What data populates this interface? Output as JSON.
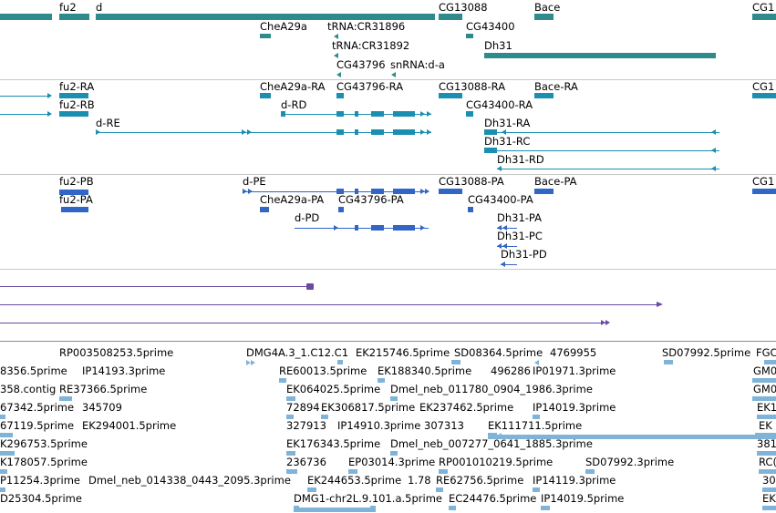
{
  "gene_track": {
    "labels": [
      "fu2",
      "d",
      "CG13088",
      "Bace",
      "CG1",
      "CheA29a",
      "tRNA:CR31896",
      "CG43400",
      "tRNA:CR31892",
      "Dh31",
      "CG43796",
      "snRNA:d-a"
    ]
  },
  "flybase_track": {
    "labels": [
      "fu2-RA",
      "CheA29a-RA",
      "CG43796-RA",
      "CG13088-RA",
      "Bace-RA",
      "CG1",
      "fu2-RB",
      "d-RD",
      "CG43400-RA",
      "d-RE",
      "Dh31-RA",
      "Dh31-RC",
      "Dh31-RD"
    ]
  },
  "protein_track": {
    "labels": [
      "fu2-PB",
      "d-PE",
      "CG13088-PA",
      "Bace-PA",
      "CG1",
      "fu2-PA",
      "CheA29a-PA",
      "CG43796-PA",
      "CG43400-PA",
      "d-PD",
      "Dh31-PA",
      "Dh31-PC",
      "Dh31-PD"
    ]
  },
  "est_track": {
    "rows": [
      [
        "RP003508253.5prime",
        "DMG4A.3_1.C12.C1",
        "EK215746.5prime",
        "SD08364.5prime",
        "4769955",
        "SD07992.5prime",
        "FGC"
      ],
      [
        "8356.5prime",
        "IP14193.3prime",
        "RE60013.5prime",
        "EK188340.5prime",
        "496286",
        "IP01971.3prime",
        "GM0"
      ],
      [
        "358.contig",
        "RE37366.5prime",
        "EK064025.5prime",
        "Dmel_neb_011780_0904_1986.3prime",
        "GM0"
      ],
      [
        "67342.5prime",
        "345709",
        "72894",
        "EK306817.5prime",
        "EK237462.5prime",
        "IP14019.3prime",
        "EK1"
      ],
      [
        "67119.5prime",
        "EK294001.5prime",
        "327913",
        "IP14910.3prime",
        "307313",
        "EK111711.5prime",
        "EK"
      ],
      [
        "K296753.5prime",
        "EK176343.5prime",
        "Dmel_neb_007277_0641_1885.3prime",
        "381"
      ],
      [
        "K178057.5prime",
        "236736",
        "EP03014.3prime",
        "RP001010219.5prime",
        "SD07992.3prime",
        "RC("
      ],
      [
        "P11254.3prime",
        "Dmel_neb_014338_0443_2095.3prime",
        "EK244653.5prime",
        "1.78",
        "RE62756.5prime",
        "IP14119.3prime",
        "30"
      ],
      [
        "D25304.5prime",
        "DMG1-chr2L.9.101.a.5prime",
        "EC24476.5prime",
        "IP14019.5prime",
        "EK"
      ]
    ]
  }
}
